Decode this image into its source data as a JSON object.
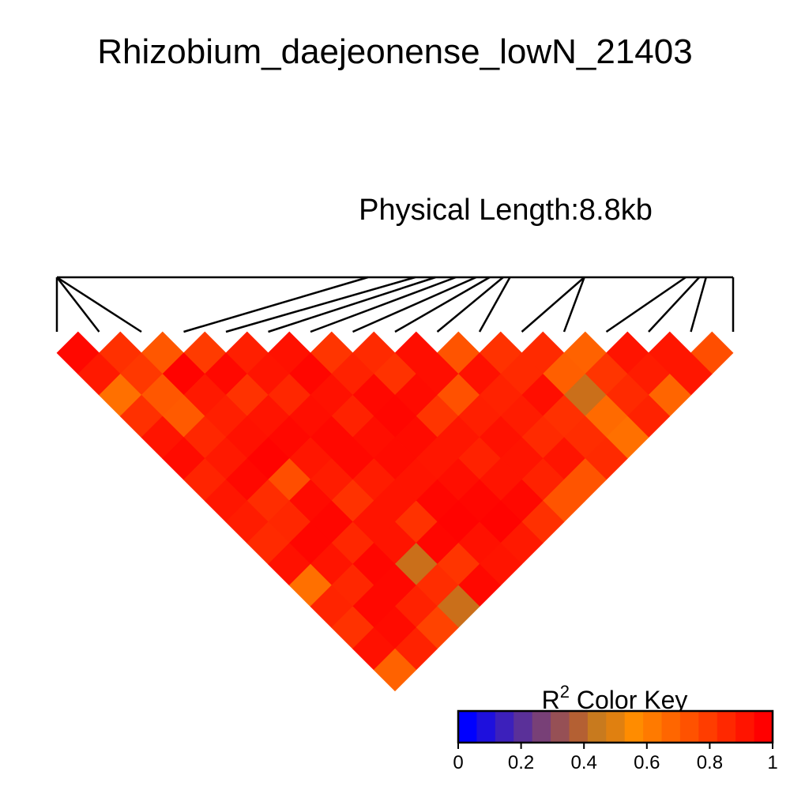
{
  "chart_data": {
    "type": "heatmap",
    "title": "Rhizobium_daejeonense_lowN_21403",
    "subtitle": "Physical Length:8.8kb",
    "color_key": {
      "label_base": "R",
      "label_sup": "2",
      "label_rest": " Color Key",
      "ticks": [
        "0",
        "0.2",
        "0.4",
        "0.6",
        "0.8",
        "1"
      ],
      "tick_values": [
        0,
        0.2,
        0.4,
        0.6,
        0.8,
        1
      ],
      "range": [
        0,
        1
      ],
      "colors": [
        "#0000FF",
        "#1E10DD",
        "#3C20BB",
        "#5A3099",
        "#784077",
        "#965055",
        "#B46033",
        "#C87A1E",
        "#E08010",
        "#FF8C00",
        "#FF7A00",
        "#FF6600",
        "#FF5200",
        "#FF3D00",
        "#FF2800",
        "#FF1400",
        "#FF0000"
      ]
    },
    "snp_positions": [
      0,
      0,
      0,
      0.46,
      0.53,
      0.56,
      0.59,
      0.62,
      0.64,
      0.66,
      0.67,
      0.78,
      0.78,
      0.93,
      0.95,
      0.96,
      1.0
    ],
    "ld_matrix": [
      [
        0.97,
        0.83,
        0.69,
        0.79,
        0.89,
        0.94,
        0.81,
        0.85,
        0.95,
        0.7,
        0.82,
        0.85,
        0.65,
        0.93,
        0.92,
        0.72
      ],
      [
        0.91,
        0.8,
        0.99,
        0.97,
        0.93,
        0.98,
        0.88,
        0.82,
        0.95,
        0.94,
        0.85,
        0.66,
        0.81,
        0.9,
        0.92,
        null
      ],
      [
        0.6,
        0.69,
        0.91,
        0.82,
        0.86,
        0.94,
        0.97,
        0.96,
        0.71,
        0.88,
        0.95,
        0.45,
        0.85,
        0.64,
        null,
        null
      ],
      [
        0.83,
        0.68,
        0.89,
        0.93,
        0.95,
        0.88,
        0.98,
        0.81,
        0.89,
        0.9,
        0.83,
        0.62,
        0.88,
        null,
        null,
        null
      ],
      [
        0.93,
        0.86,
        0.94,
        0.97,
        0.97,
        0.95,
        0.96,
        0.92,
        0.94,
        0.85,
        0.84,
        0.6,
        null,
        null,
        null,
        null
      ],
      [
        0.96,
        0.91,
        0.99,
        0.92,
        0.97,
        0.96,
        0.92,
        0.88,
        0.93,
        0.93,
        0.85,
        null,
        null,
        null,
        null,
        null
      ],
      [
        0.87,
        0.97,
        0.72,
        0.9,
        0.9,
        0.93,
        0.95,
        0.93,
        0.88,
        0.7,
        null,
        null,
        null,
        null,
        null,
        null
      ],
      [
        0.92,
        0.84,
        0.96,
        0.82,
        0.93,
        0.98,
        0.98,
        0.97,
        0.7,
        null,
        null,
        null,
        null,
        null,
        null,
        null
      ],
      [
        0.9,
        0.86,
        0.98,
        0.93,
        0.82,
        0.99,
        0.99,
        0.83,
        null,
        null,
        null,
        null,
        null,
        null,
        null,
        null
      ],
      [
        0.85,
        0.98,
        0.86,
        0.93,
        0.98,
        0.94,
        0.91,
        null,
        null,
        null,
        null,
        null,
        null,
        null,
        null,
        null
      ],
      [
        0.94,
        0.93,
        0.98,
        0.45,
        0.81,
        0.93,
        null,
        null,
        null,
        null,
        null,
        null,
        null,
        null,
        null,
        null
      ],
      [
        0.6,
        0.86,
        0.97,
        0.84,
        0.97,
        null,
        null,
        null,
        null,
        null,
        null,
        null,
        null,
        null,
        null,
        null
      ],
      [
        0.87,
        0.97,
        0.88,
        0.45,
        null,
        null,
        null,
        null,
        null,
        null,
        null,
        null,
        null,
        null,
        null,
        null
      ],
      [
        0.82,
        0.96,
        0.76,
        null,
        null,
        null,
        null,
        null,
        null,
        null,
        null,
        null,
        null,
        null,
        null,
        null
      ],
      [
        0.94,
        0.88,
        null,
        null,
        null,
        null,
        null,
        null,
        null,
        null,
        null,
        null,
        null,
        null,
        null,
        null
      ],
      [
        0.65,
        null,
        null,
        null,
        null,
        null,
        null,
        null,
        null,
        null,
        null,
        null,
        null,
        null,
        null,
        null
      ]
    ]
  }
}
